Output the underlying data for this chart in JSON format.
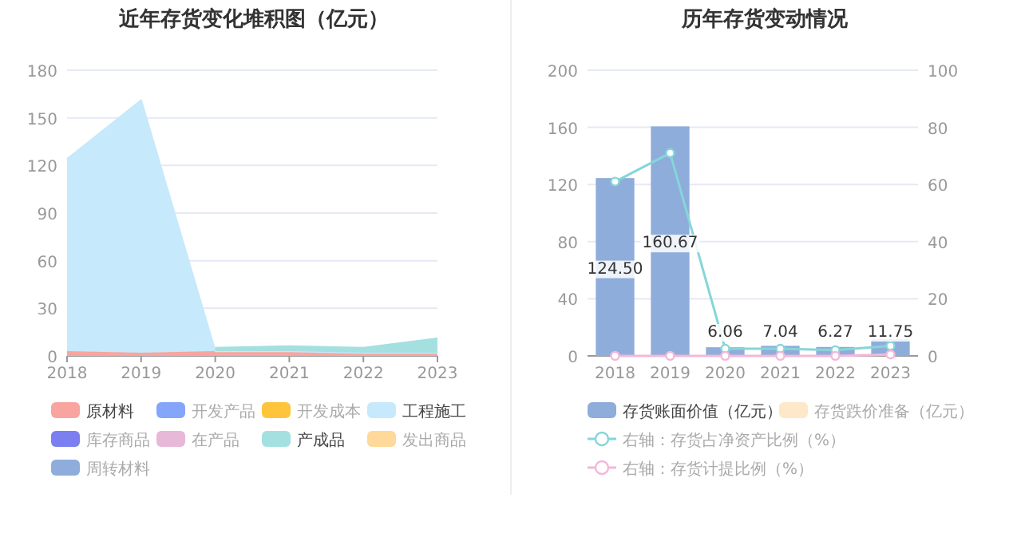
{
  "chart_data": [
    {
      "type": "area",
      "title": "近年存货变化堆积图（亿元）",
      "stacked": true,
      "categories": [
        "2018",
        "2019",
        "2020",
        "2021",
        "2022",
        "2023"
      ],
      "ylim": [
        0,
        180
      ],
      "yticks": [
        0,
        30,
        60,
        90,
        120,
        150,
        180
      ],
      "grid": "y",
      "legend": "bottom",
      "series": [
        {
          "name": "原材料",
          "color": "#f9a59f",
          "values": [
            3,
            2,
            3,
            3,
            2,
            2
          ]
        },
        {
          "name": "开发产品",
          "color": "#85a5fb",
          "values": [
            null,
            null,
            null,
            null,
            null,
            null
          ]
        },
        {
          "name": "开发成本",
          "color": "#fec53c",
          "values": [
            null,
            null,
            null,
            null,
            null,
            null
          ]
        },
        {
          "name": "工程施工",
          "color": "#c6e9fb",
          "values": [
            121,
            159,
            0,
            0,
            0,
            0
          ]
        },
        {
          "name": "库存商品",
          "color": "#7b7ff0",
          "values": [
            null,
            null,
            null,
            null,
            null,
            null
          ]
        },
        {
          "name": "在产品",
          "color": "#e7b8d8",
          "values": [
            null,
            null,
            null,
            null,
            null,
            null
          ]
        },
        {
          "name": "产成品",
          "color": "#a5e0e1",
          "values": [
            null,
            null,
            2,
            3,
            3,
            9
          ]
        },
        {
          "name": "发出商品",
          "color": "#fed99a",
          "values": [
            null,
            null,
            null,
            null,
            null,
            null
          ]
        },
        {
          "name": "周转材料",
          "color": "#8eaddb",
          "values": [
            null,
            null,
            null,
            null,
            null,
            null
          ]
        }
      ]
    },
    {
      "type": "bar",
      "title": "历年存货变动情况",
      "categories": [
        "2018",
        "2019",
        "2020",
        "2021",
        "2022",
        "2023"
      ],
      "ylim": [
        0,
        200
      ],
      "yticks": [
        0,
        40,
        80,
        120,
        160,
        200
      ],
      "y2lim": [
        0,
        100
      ],
      "y2ticks": [
        0,
        20,
        40,
        60,
        80,
        100
      ],
      "grid": "y",
      "legend": "bottom",
      "series": [
        {
          "name": "存货账面价值（亿元）",
          "color": "#8eaddb",
          "values": [
            124.5,
            160.67,
            6.06,
            7.04,
            6.27,
            11.75
          ],
          "value_labels": [
            "124.50",
            "160.67",
            "6.06",
            "7.04",
            "6.27",
            "11.75"
          ]
        },
        {
          "name": "存货跌价准备（亿元）",
          "color": "#fde9c9",
          "values": [
            null,
            null,
            null,
            null,
            null,
            null
          ]
        },
        {
          "name": "右轴：存货占净资产比例（%）",
          "type": "line",
          "axis": "y2",
          "color": "#86d6d8",
          "marker": "circle",
          "values": [
            61,
            71,
            2.5,
            2.5,
            2,
            3.5
          ]
        },
        {
          "name": "右轴：存货计提比例（%）",
          "type": "line",
          "axis": "y2",
          "color": "#f2b8da",
          "marker": "circle",
          "values": [
            0,
            0,
            0,
            0,
            0,
            0.5
          ]
        }
      ]
    }
  ]
}
